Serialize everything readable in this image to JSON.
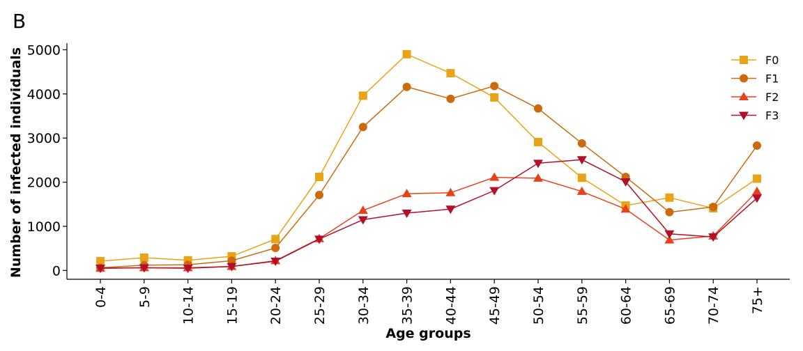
{
  "panel_label": "B",
  "chart_data": {
    "type": "line",
    "xlabel": "Age groups",
    "ylabel": "Number of infected individuals",
    "categories": [
      "0-4",
      "5-9",
      "10-14",
      "15-19",
      "20-24",
      "25-29",
      "30-34",
      "35-39",
      "40-44",
      "45-49",
      "50-54",
      "55-59",
      "60-64",
      "65-69",
      "70-74",
      "75+"
    ],
    "ylim": [
      -200,
      5150
    ],
    "yticks": [
      0,
      1000,
      2000,
      3000,
      4000,
      5000
    ],
    "grid": false,
    "legend_position": "top-right",
    "series": [
      {
        "name": "F0",
        "color": "#E8A317",
        "marker": "square",
        "values": [
          210,
          290,
          230,
          320,
          710,
          2120,
          3960,
          4900,
          4470,
          3920,
          2910,
          2100,
          1470,
          1650,
          1410,
          2080
        ]
      },
      {
        "name": "F1",
        "color": "#CC6A0E",
        "marker": "circle",
        "values": [
          60,
          120,
          130,
          220,
          510,
          1710,
          3250,
          4160,
          3890,
          4180,
          3670,
          2880,
          2120,
          1320,
          1440,
          2830
        ]
      },
      {
        "name": "F2",
        "color": "#E8401A",
        "marker": "triangle-up",
        "values": [
          50,
          60,
          60,
          90,
          220,
          720,
          1360,
          1740,
          1760,
          2110,
          2090,
          1790,
          1390,
          690,
          780,
          1790
        ]
      },
      {
        "name": "F3",
        "color": "#B0102A",
        "marker": "triangle-down",
        "values": [
          50,
          60,
          50,
          90,
          210,
          710,
          1150,
          1300,
          1390,
          1810,
          2430,
          2510,
          2010,
          830,
          760,
          1640
        ]
      }
    ]
  }
}
